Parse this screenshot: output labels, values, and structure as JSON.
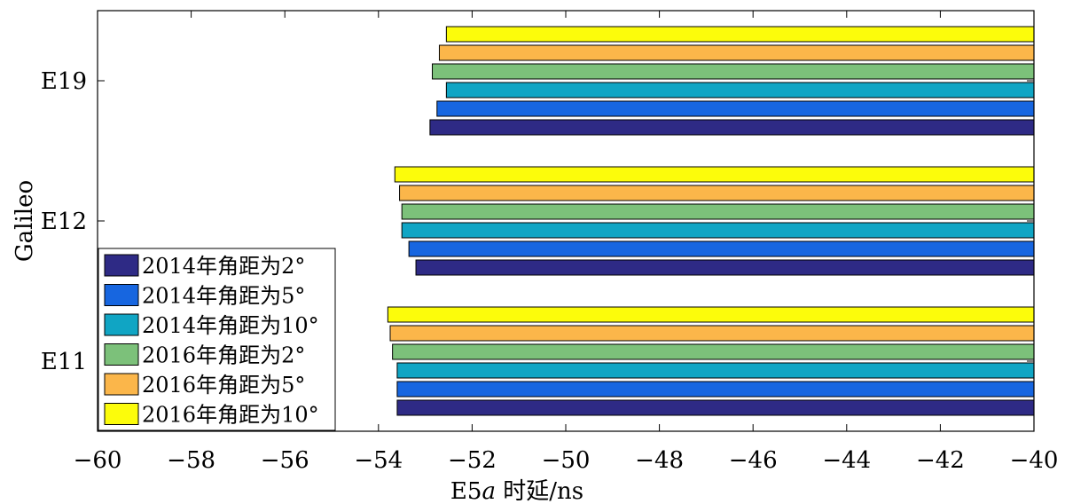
{
  "chart_data": {
    "type": "bar",
    "orientation": "horizontal",
    "title": "",
    "xlabel": "E5a 时延/ns",
    "xlabel_parts": {
      "prefix": "E5",
      "italic": "a",
      "suffix": " 时延/ns"
    },
    "ylabel": "Galileo",
    "categories": [
      "E11",
      "E12",
      "E19"
    ],
    "xlim": [
      -60,
      -40
    ],
    "xticks": [
      -60,
      -58,
      -56,
      -54,
      -52,
      -50,
      -48,
      -46,
      -44,
      -42,
      -40
    ],
    "xtick_labels": [
      "−60",
      "−58",
      "−56",
      "−54",
      "−52",
      "−50",
      "−48",
      "−46",
      "−44",
      "−42",
      "−40"
    ],
    "bar_base": -40,
    "grid": false,
    "legend_position": "bottom-left",
    "series": [
      {
        "name": "2014年角距为2°",
        "color": "#2e2a85",
        "values": [
          -53.6,
          -53.2,
          -52.9
        ]
      },
      {
        "name": "2014年角距为5°",
        "color": "#1766e0",
        "values": [
          -53.6,
          -53.35,
          -52.75
        ]
      },
      {
        "name": "2014年角距为10°",
        "color": "#10a5c4",
        "values": [
          -53.6,
          -53.5,
          -52.55
        ]
      },
      {
        "name": "2016年角距为2°",
        "color": "#7cc17a",
        "values": [
          -53.7,
          -53.5,
          -52.85
        ]
      },
      {
        "name": "2016年角距为5°",
        "color": "#fbb64a",
        "values": [
          -53.75,
          -53.55,
          -52.7
        ]
      },
      {
        "name": "2016年角距为10°",
        "color": "#fcfc0b",
        "values": [
          -53.8,
          -53.65,
          -52.55
        ]
      }
    ]
  }
}
